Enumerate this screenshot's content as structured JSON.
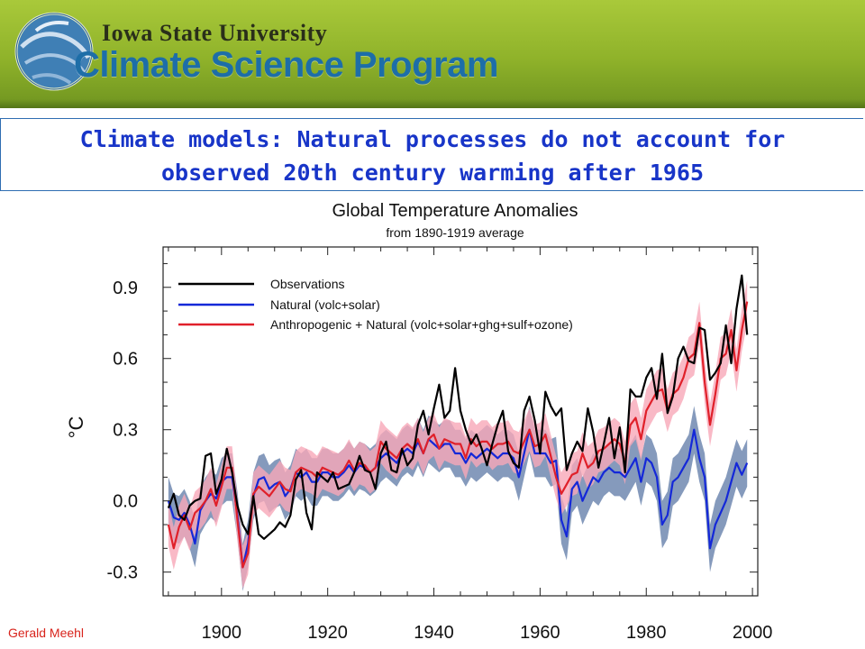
{
  "header": {
    "university": "Iowa State University",
    "program": "Climate Science Program",
    "logo_icon": "globe-swirl-logo",
    "colors": {
      "band": "#9dbf34",
      "program_text": "#1d6ea8"
    }
  },
  "slide": {
    "title_line1": "Climate models: Natural processes do not account for",
    "title_line2": "observed 20th century warming after 1965",
    "title_color": "#1835c8",
    "credit": "Gerald Meehl",
    "credit_color": "#d8241c"
  },
  "chart_data": {
    "type": "line",
    "title": "Global Temperature Anomalies",
    "subtitle": "from 1890-1919 average",
    "xlabel": "",
    "ylabel": "°C",
    "xlim": [
      1889,
      2001
    ],
    "ylim": [
      -0.4,
      1.07
    ],
    "x_ticks": [
      1900,
      1920,
      1940,
      1960,
      1980,
      2000
    ],
    "y_ticks": [
      0.9,
      0.6,
      0.3,
      0.0,
      -0.3
    ],
    "y_tick_labels": [
      "0.9",
      "0.6",
      "0.3",
      "0.0",
      "-0.3"
    ],
    "legend_position": "top-left",
    "grid": false,
    "x": [
      1890,
      1891,
      1892,
      1893,
      1894,
      1895,
      1896,
      1897,
      1898,
      1899,
      1900,
      1901,
      1902,
      1903,
      1904,
      1905,
      1906,
      1907,
      1908,
      1909,
      1910,
      1911,
      1912,
      1913,
      1914,
      1915,
      1916,
      1917,
      1918,
      1919,
      1920,
      1921,
      1922,
      1923,
      1924,
      1925,
      1926,
      1927,
      1928,
      1929,
      1930,
      1931,
      1932,
      1933,
      1934,
      1935,
      1936,
      1937,
      1938,
      1939,
      1940,
      1941,
      1942,
      1943,
      1944,
      1945,
      1946,
      1947,
      1948,
      1949,
      1950,
      1951,
      1952,
      1953,
      1954,
      1955,
      1956,
      1957,
      1958,
      1959,
      1960,
      1961,
      1962,
      1963,
      1964,
      1965,
      1966,
      1967,
      1968,
      1969,
      1970,
      1971,
      1972,
      1973,
      1974,
      1975,
      1976,
      1977,
      1978,
      1979,
      1980,
      1981,
      1982,
      1983,
      1984,
      1985,
      1986,
      1987,
      1988,
      1989,
      1990,
      1991,
      1992,
      1993,
      1994,
      1995,
      1996,
      1997,
      1998,
      1999
    ],
    "series": [
      {
        "name": "Observations",
        "color": "#000000",
        "values": [
          -0.03,
          0.03,
          -0.06,
          -0.08,
          -0.02,
          0.0,
          0.01,
          0.19,
          0.2,
          0.03,
          0.09,
          0.22,
          0.12,
          -0.02,
          -0.1,
          -0.14,
          0.02,
          -0.14,
          -0.16,
          -0.14,
          -0.12,
          -0.09,
          -0.11,
          -0.06,
          0.09,
          0.13,
          -0.05,
          -0.12,
          0.12,
          0.1,
          0.08,
          0.12,
          0.05,
          0.06,
          0.07,
          0.12,
          0.19,
          0.13,
          0.12,
          0.05,
          0.2,
          0.25,
          0.13,
          0.12,
          0.22,
          0.15,
          0.18,
          0.32,
          0.38,
          0.28,
          0.39,
          0.49,
          0.35,
          0.38,
          0.56,
          0.38,
          0.3,
          0.24,
          0.28,
          0.22,
          0.15,
          0.24,
          0.32,
          0.38,
          0.21,
          0.16,
          0.14,
          0.38,
          0.44,
          0.34,
          0.2,
          0.46,
          0.4,
          0.36,
          0.39,
          0.13,
          0.2,
          0.25,
          0.21,
          0.39,
          0.29,
          0.14,
          0.24,
          0.35,
          0.18,
          0.31,
          0.12,
          0.47,
          0.44,
          0.44,
          0.52,
          0.56,
          0.43,
          0.62,
          0.37,
          0.44,
          0.6,
          0.65,
          0.59,
          0.58,
          0.73,
          0.72,
          0.51,
          0.54,
          0.58,
          0.74,
          0.58,
          0.81,
          0.95,
          0.7
        ]
      },
      {
        "name": "Natural (volc+solar)",
        "color": "#1428d8",
        "values": [
          0.0,
          -0.07,
          -0.08,
          -0.05,
          -0.1,
          -0.18,
          -0.04,
          0.0,
          0.03,
          0.01,
          0.08,
          0.1,
          0.1,
          -0.06,
          -0.28,
          -0.18,
          0.02,
          0.09,
          0.1,
          0.05,
          0.07,
          0.08,
          0.02,
          0.05,
          0.12,
          0.1,
          0.12,
          0.08,
          0.08,
          0.12,
          0.12,
          0.1,
          0.1,
          0.12,
          0.15,
          0.12,
          0.15,
          0.14,
          0.12,
          0.14,
          0.18,
          0.2,
          0.18,
          0.16,
          0.2,
          0.22,
          0.2,
          0.25,
          0.2,
          0.26,
          0.24,
          0.22,
          0.24,
          0.24,
          0.2,
          0.2,
          0.16,
          0.2,
          0.18,
          0.2,
          0.22,
          0.2,
          0.18,
          0.2,
          0.2,
          0.18,
          0.1,
          0.2,
          0.3,
          0.2,
          0.2,
          0.2,
          0.16,
          0.17,
          -0.08,
          -0.15,
          0.05,
          0.08,
          0.0,
          0.05,
          0.1,
          0.08,
          0.12,
          0.14,
          0.12,
          0.12,
          0.1,
          0.14,
          0.18,
          0.08,
          0.18,
          0.16,
          0.1,
          -0.1,
          -0.06,
          0.08,
          0.1,
          0.14,
          0.18,
          0.3,
          0.18,
          0.1,
          -0.2,
          -0.1,
          -0.05,
          0.0,
          0.08,
          0.16,
          0.11,
          0.16
        ]
      },
      {
        "name": "Anthropogenic + Natural (volc+solar+ghg+sulf+ozone)",
        "color": "#e0202a",
        "values": [
          -0.1,
          -0.2,
          -0.11,
          -0.06,
          -0.12,
          -0.05,
          -0.03,
          0.0,
          0.05,
          -0.02,
          0.06,
          0.14,
          0.14,
          -0.08,
          -0.28,
          -0.22,
          0.03,
          0.06,
          0.04,
          0.02,
          0.05,
          0.08,
          0.05,
          0.04,
          0.12,
          0.14,
          0.13,
          0.12,
          0.1,
          0.14,
          0.13,
          0.12,
          0.11,
          0.13,
          0.17,
          0.13,
          0.16,
          0.15,
          0.12,
          0.14,
          0.25,
          0.22,
          0.2,
          0.18,
          0.22,
          0.24,
          0.22,
          0.26,
          0.2,
          0.26,
          0.28,
          0.22,
          0.26,
          0.25,
          0.24,
          0.24,
          0.18,
          0.26,
          0.23,
          0.25,
          0.25,
          0.22,
          0.24,
          0.24,
          0.25,
          0.21,
          0.2,
          0.25,
          0.3,
          0.23,
          0.24,
          0.28,
          0.19,
          0.1,
          0.03,
          0.07,
          0.11,
          0.12,
          0.2,
          0.14,
          0.16,
          0.21,
          0.22,
          0.24,
          0.26,
          0.24,
          0.16,
          0.32,
          0.35,
          0.26,
          0.38,
          0.42,
          0.46,
          0.47,
          0.38,
          0.45,
          0.47,
          0.52,
          0.6,
          0.62,
          0.75,
          0.5,
          0.32,
          0.45,
          0.6,
          0.62,
          0.72,
          0.55,
          0.72,
          0.84
        ]
      }
    ],
    "bands": [
      {
        "name": "Natural (volc+solar) ensemble range",
        "color": "#7088b0",
        "lower": [
          -0.1,
          -0.17,
          -0.18,
          -0.15,
          -0.2,
          -0.28,
          -0.14,
          -0.1,
          -0.07,
          -0.09,
          -0.02,
          0.0,
          0.0,
          -0.16,
          -0.38,
          -0.28,
          -0.08,
          -0.01,
          0.0,
          -0.05,
          -0.03,
          -0.02,
          -0.08,
          -0.05,
          0.02,
          0.0,
          0.02,
          -0.02,
          -0.02,
          0.02,
          0.02,
          0.0,
          0.0,
          0.02,
          0.05,
          0.02,
          0.05,
          0.04,
          0.02,
          0.04,
          0.08,
          0.1,
          0.08,
          0.06,
          0.1,
          0.12,
          0.1,
          0.15,
          0.1,
          0.16,
          0.14,
          0.12,
          0.14,
          0.14,
          0.1,
          0.1,
          0.06,
          0.1,
          0.08,
          0.1,
          0.12,
          0.1,
          0.08,
          0.1,
          0.1,
          0.08,
          0.0,
          0.1,
          0.2,
          0.1,
          0.1,
          0.1,
          0.06,
          0.07,
          -0.18,
          -0.25,
          -0.05,
          -0.02,
          -0.1,
          -0.05,
          0.0,
          -0.02,
          0.02,
          0.04,
          0.02,
          0.02,
          0.0,
          0.04,
          0.08,
          -0.02,
          0.08,
          0.06,
          0.0,
          -0.2,
          -0.16,
          -0.02,
          0.0,
          0.04,
          0.08,
          0.2,
          0.08,
          0.0,
          -0.3,
          -0.2,
          -0.15,
          -0.1,
          -0.02,
          0.06,
          0.01,
          0.06
        ],
        "upper": [
          0.1,
          0.03,
          0.02,
          0.05,
          0.0,
          -0.08,
          0.06,
          0.1,
          0.13,
          0.11,
          0.18,
          0.2,
          0.2,
          0.04,
          -0.18,
          -0.08,
          0.12,
          0.19,
          0.2,
          0.15,
          0.17,
          0.18,
          0.12,
          0.15,
          0.22,
          0.2,
          0.22,
          0.18,
          0.18,
          0.22,
          0.22,
          0.2,
          0.2,
          0.22,
          0.25,
          0.22,
          0.25,
          0.24,
          0.22,
          0.24,
          0.28,
          0.3,
          0.28,
          0.26,
          0.3,
          0.32,
          0.3,
          0.35,
          0.3,
          0.36,
          0.34,
          0.32,
          0.34,
          0.34,
          0.3,
          0.3,
          0.26,
          0.3,
          0.28,
          0.3,
          0.32,
          0.3,
          0.28,
          0.3,
          0.3,
          0.28,
          0.2,
          0.3,
          0.4,
          0.3,
          0.3,
          0.3,
          0.26,
          0.27,
          0.02,
          -0.05,
          0.15,
          0.18,
          0.1,
          0.15,
          0.2,
          0.18,
          0.22,
          0.24,
          0.22,
          0.22,
          0.2,
          0.24,
          0.28,
          0.18,
          0.28,
          0.26,
          0.2,
          0.0,
          0.04,
          0.18,
          0.2,
          0.24,
          0.28,
          0.4,
          0.28,
          0.2,
          -0.1,
          0.0,
          0.05,
          0.1,
          0.18,
          0.26,
          0.21,
          0.26
        ]
      },
      {
        "name": "Anthropogenic + Natural ensemble range",
        "color": "#f7a8b8",
        "lower": [
          -0.19,
          -0.29,
          -0.2,
          -0.15,
          -0.21,
          -0.14,
          -0.12,
          -0.09,
          -0.04,
          -0.11,
          -0.03,
          0.05,
          0.05,
          -0.17,
          -0.37,
          -0.31,
          -0.06,
          -0.03,
          -0.05,
          -0.07,
          -0.04,
          -0.01,
          -0.04,
          -0.05,
          0.03,
          0.05,
          0.04,
          0.03,
          0.01,
          0.05,
          0.04,
          0.03,
          0.02,
          0.04,
          0.08,
          0.04,
          0.07,
          0.06,
          0.03,
          0.05,
          0.16,
          0.13,
          0.11,
          0.09,
          0.13,
          0.15,
          0.13,
          0.17,
          0.11,
          0.17,
          0.19,
          0.13,
          0.17,
          0.16,
          0.15,
          0.15,
          0.09,
          0.17,
          0.14,
          0.16,
          0.16,
          0.13,
          0.15,
          0.15,
          0.16,
          0.12,
          0.11,
          0.16,
          0.21,
          0.14,
          0.15,
          0.19,
          0.1,
          0.01,
          -0.06,
          -0.02,
          0.02,
          0.03,
          0.11,
          0.05,
          0.07,
          0.12,
          0.13,
          0.15,
          0.17,
          0.15,
          0.07,
          0.23,
          0.26,
          0.17,
          0.29,
          0.33,
          0.37,
          0.38,
          0.29,
          0.36,
          0.38,
          0.43,
          0.51,
          0.53,
          0.66,
          0.41,
          0.23,
          0.36,
          0.51,
          0.53,
          0.63,
          0.46,
          0.63,
          0.75
        ],
        "upper": [
          -0.01,
          -0.11,
          -0.02,
          0.03,
          -0.03,
          0.04,
          0.06,
          0.09,
          0.14,
          0.07,
          0.15,
          0.23,
          0.23,
          0.01,
          -0.19,
          -0.13,
          0.12,
          0.15,
          0.13,
          0.11,
          0.14,
          0.17,
          0.14,
          0.13,
          0.21,
          0.23,
          0.22,
          0.21,
          0.19,
          0.23,
          0.22,
          0.21,
          0.2,
          0.22,
          0.26,
          0.22,
          0.25,
          0.24,
          0.21,
          0.23,
          0.34,
          0.31,
          0.29,
          0.27,
          0.31,
          0.33,
          0.31,
          0.35,
          0.29,
          0.35,
          0.37,
          0.31,
          0.35,
          0.34,
          0.33,
          0.33,
          0.27,
          0.35,
          0.32,
          0.34,
          0.34,
          0.31,
          0.33,
          0.33,
          0.34,
          0.3,
          0.29,
          0.34,
          0.39,
          0.32,
          0.33,
          0.37,
          0.28,
          0.19,
          0.12,
          0.16,
          0.2,
          0.21,
          0.29,
          0.23,
          0.25,
          0.3,
          0.31,
          0.33,
          0.35,
          0.33,
          0.25,
          0.41,
          0.44,
          0.35,
          0.47,
          0.51,
          0.55,
          0.56,
          0.47,
          0.54,
          0.56,
          0.61,
          0.69,
          0.71,
          0.84,
          0.59,
          0.41,
          0.54,
          0.69,
          0.71,
          0.81,
          0.64,
          0.81,
          0.93
        ]
      }
    ]
  }
}
